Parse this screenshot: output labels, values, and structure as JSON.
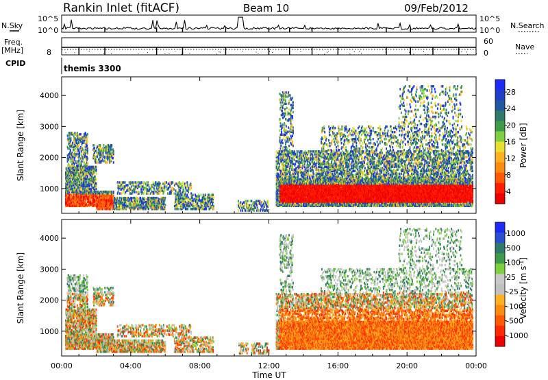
{
  "header": {
    "station": "Rankin Inlet (fitACF)",
    "beam": "Beam 10",
    "date": "09/Feb/2012"
  },
  "top_panels": {
    "nsky_label": "N.Sky",
    "nsearch_label": "N.Search",
    "nsky_ticks": [
      "10^5",
      "10^0"
    ],
    "nsearch_ticks": [
      "10^5",
      "10^0"
    ],
    "freq_label": "Freq.",
    "freq_unit": "[MHz]",
    "freq_ticks": [
      "8"
    ],
    "nave_label": "Nave",
    "nave_ticks": [
      "60",
      "0"
    ],
    "cpid_label": "CPID",
    "cpid_value": "themis 3300"
  },
  "chart_data": [
    {
      "type": "heatmap",
      "title": "",
      "quantity": "power",
      "ylabel": "Slant Range [km]",
      "xlabel": "",
      "y_ticks": [
        1000,
        2000,
        3000,
        4000
      ],
      "ylim": [
        200,
        4600
      ],
      "x_ticks": [
        "00:00",
        "04:00",
        "08:00",
        "12:00",
        "16:00",
        "20:00",
        "00:00"
      ],
      "colorbar": {
        "label": "Power [dB]",
        "ticks": [
          "28",
          "24",
          "20",
          "16",
          "12",
          "8",
          "4"
        ],
        "colors": [
          "#1e2bff",
          "#1e3fc8",
          "#1f5aa0",
          "#2f7a6a",
          "#3f9a4a",
          "#7fd040",
          "#e8e030",
          "#ffb020",
          "#ff8a10",
          "#ff5a00",
          "#ff1e00",
          "#ee0000"
        ]
      }
    },
    {
      "type": "heatmap",
      "title": "",
      "quantity": "velocity",
      "ylabel": "Slant Range [km]",
      "xlabel": "Time UT",
      "y_ticks": [
        1000,
        2000,
        3000,
        4000
      ],
      "ylim": [
        200,
        4600
      ],
      "x_ticks": [
        "00:00",
        "04:00",
        "08:00",
        "12:00",
        "16:00",
        "20:00",
        "00:00"
      ],
      "colorbar": {
        "label": "Velocity [m s^-1]",
        "ticks": [
          "1000",
          "500",
          "100",
          "25",
          "-25",
          "-100",
          "-500",
          "-1000"
        ],
        "colors": [
          "#1e2bff",
          "#2a4fd0",
          "#2f7a6a",
          "#3f9a4a",
          "#7fd040",
          "#c8c8c8",
          "#c0c0c0",
          "#ffb020",
          "#ff8a10",
          "#ff5a00",
          "#ff2a00",
          "#ee0000"
        ]
      }
    }
  ]
}
